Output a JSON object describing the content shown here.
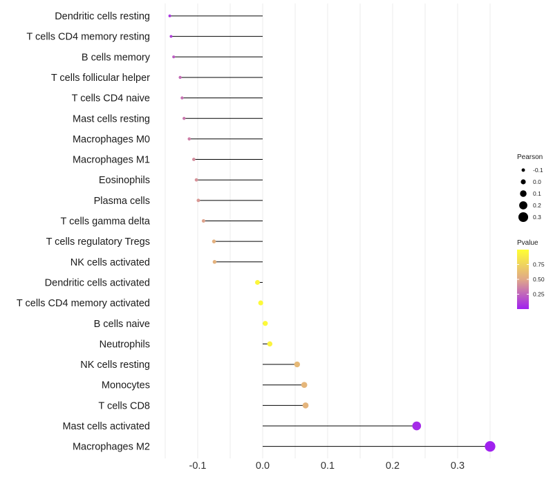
{
  "chart_data": {
    "type": "lollipop",
    "title": "",
    "xlabel": "",
    "ylabel": "",
    "xlim": [
      -0.152,
      0.365
    ],
    "x_ticks": [
      -0.1,
      0.0,
      0.1,
      0.2,
      0.3
    ],
    "x_tick_labels": [
      "-0.1",
      "0.0",
      "0.1",
      "0.2",
      "0.3"
    ],
    "grid": true,
    "points": [
      {
        "name": "Dendritic cells resting",
        "pearson": -0.143,
        "pvalue": 0.08
      },
      {
        "name": "T cells CD4 memory resting",
        "pearson": -0.141,
        "pvalue": 0.12
      },
      {
        "name": "B cells memory",
        "pearson": -0.137,
        "pvalue": 0.22
      },
      {
        "name": "T cells follicular helper",
        "pearson": -0.127,
        "pvalue": 0.28
      },
      {
        "name": "T cells CD4 naive",
        "pearson": -0.124,
        "pvalue": 0.3
      },
      {
        "name": "Mast cells resting",
        "pearson": -0.121,
        "pvalue": 0.32
      },
      {
        "name": "Macrophages M0",
        "pearson": -0.113,
        "pvalue": 0.35
      },
      {
        "name": "Macrophages M1",
        "pearson": -0.106,
        "pvalue": 0.4
      },
      {
        "name": "Eosinophils",
        "pearson": -0.102,
        "pvalue": 0.42
      },
      {
        "name": "Plasma cells",
        "pearson": -0.099,
        "pvalue": 0.44
      },
      {
        "name": "T cells gamma delta",
        "pearson": -0.091,
        "pvalue": 0.48
      },
      {
        "name": "T cells regulatory  Tregs ",
        "pearson": -0.075,
        "pvalue": 0.55
      },
      {
        "name": "NK cells activated",
        "pearson": -0.074,
        "pvalue": 0.56
      },
      {
        "name": "Dendritic cells activated",
        "pearson": -0.008,
        "pvalue": 0.95
      },
      {
        "name": "T cells CD4 memory activated",
        "pearson": -0.003,
        "pvalue": 0.97
      },
      {
        "name": "B cells naive",
        "pearson": 0.004,
        "pvalue": 0.97
      },
      {
        "name": "Neutrophils",
        "pearson": 0.011,
        "pvalue": 0.93
      },
      {
        "name": "NK cells resting",
        "pearson": 0.053,
        "pvalue": 0.6
      },
      {
        "name": "Monocytes",
        "pearson": 0.064,
        "pvalue": 0.58
      },
      {
        "name": "T cells CD8",
        "pearson": 0.066,
        "pvalue": 0.57
      },
      {
        "name": "Mast cells activated",
        "pearson": 0.237,
        "pvalue": 0.04
      },
      {
        "name": "Macrophages M2",
        "pearson": 0.35,
        "pvalue": 0.003
      }
    ],
    "size_legend": {
      "title": "Pearson",
      "values": [
        -0.1,
        0.0,
        0.1,
        0.2,
        0.3
      ],
      "labels": [
        "-0.1",
        "0.0",
        "0.1",
        "0.2",
        "0.3"
      ]
    },
    "color_legend": {
      "title": "Pvalue",
      "range": [
        0.0,
        1.0
      ],
      "ticks": [
        0.25,
        0.5,
        0.75
      ],
      "labels": [
        "0.25",
        "0.50",
        "0.75"
      ],
      "low_color": "#a020f0",
      "mid_color": "#e0a888",
      "high_color": "#ffff33"
    },
    "colors": {
      "stem": "#000000",
      "grid": "#ebebeb"
    }
  }
}
